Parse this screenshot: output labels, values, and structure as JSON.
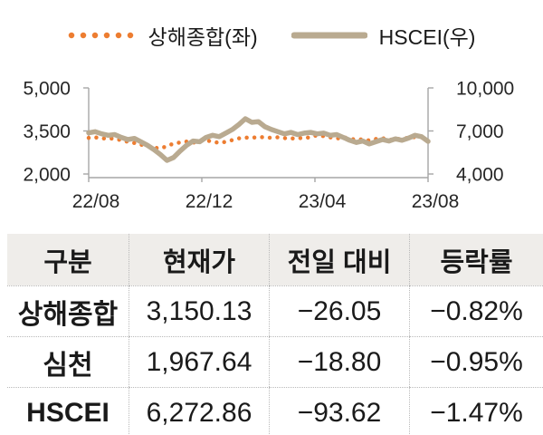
{
  "legend": {
    "shanghai": "상해종합(좌)",
    "hscei": "HSCEI(우)"
  },
  "colors": {
    "shanghai": "#ED7D31",
    "hscei": "#B9AA90",
    "axis": "#A6A6A6",
    "header_bg": "#EFEDEA"
  },
  "chart_data": {
    "type": "line",
    "x_ticks": [
      "22/08",
      "22/12",
      "23/04",
      "23/08"
    ],
    "left_axis": {
      "label": "상해종합(좌)",
      "min": 2000,
      "max": 5000,
      "ticks": [
        "5,000",
        "3,500",
        "2,000"
      ]
    },
    "right_axis": {
      "label": "HSCEI(우)",
      "min": 4000,
      "max": 10000,
      "ticks": [
        "10,000",
        "7,000",
        "4,000"
      ]
    },
    "series": [
      {
        "name": "상해종합",
        "axis": "left",
        "style": "dotted",
        "color": "#ED7D31",
        "values": [
          3260,
          3280,
          3230,
          3250,
          3220,
          3180,
          3120,
          3080,
          3020,
          2980,
          2920,
          2890,
          2970,
          3060,
          3100,
          3130,
          3090,
          3150,
          3170,
          3130,
          3080,
          3120,
          3180,
          3240,
          3270,
          3260,
          3290,
          3280,
          3260,
          3280,
          3250,
          3230,
          3260,
          3240,
          3290,
          3350,
          3320,
          3280,
          3230,
          3280,
          3230,
          3190,
          3210,
          3170,
          3220,
          3250,
          3190,
          3210,
          3230,
          3260,
          3290,
          3280,
          3150
        ]
      },
      {
        "name": "HSCEI",
        "axis": "right",
        "style": "solid",
        "color": "#B9AA90",
        "values": [
          6870,
          6950,
          6800,
          6700,
          6750,
          6550,
          6400,
          6480,
          6250,
          6000,
          5700,
          5350,
          4950,
          5150,
          5600,
          6000,
          6300,
          6250,
          6550,
          6700,
          6600,
          6850,
          7100,
          7450,
          7850,
          7600,
          7650,
          7300,
          7100,
          6950,
          6800,
          6900,
          6750,
          6850,
          6900,
          6800,
          6850,
          6700,
          6750,
          6550,
          6350,
          6200,
          6300,
          6100,
          6250,
          6400,
          6300,
          6450,
          6350,
          6500,
          6700,
          6600,
          6273
        ]
      }
    ]
  },
  "table": {
    "headers": [
      "구분",
      "현재가",
      "전일 대비",
      "등락률"
    ],
    "rows": [
      {
        "label": "상해종합",
        "cells": [
          "3,150.13",
          "−26.05",
          "−0.82%"
        ]
      },
      {
        "label": "심천",
        "cells": [
          "1,967.64",
          "−18.80",
          "−0.95%"
        ]
      },
      {
        "label": "HSCEI",
        "cells": [
          "6,272.86",
          "−93.62",
          "−1.47%"
        ]
      }
    ]
  }
}
